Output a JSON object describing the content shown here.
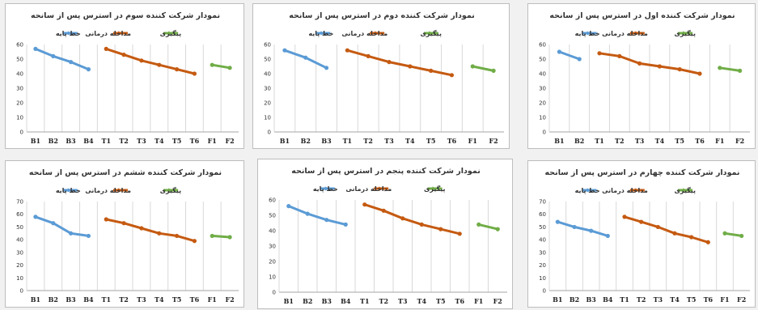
{
  "legend_labels": [
    "خط پایه",
    "مداخله درمانی",
    "پیگیری"
  ],
  "colors": {
    "baseline": "#5b9bd5",
    "treatment": "#c55a11",
    "followup": "#70ad47"
  },
  "chart_data": [
    {
      "type": "line",
      "title": "نمودار شرکت کننده سوم در استرس پس از سانحه",
      "categories": [
        "B1",
        "B2",
        "B3",
        "B4",
        "T1",
        "T2",
        "T3",
        "T4",
        "T5",
        "T6",
        "F1",
        "F2"
      ],
      "ylim": [
        0,
        60
      ],
      "yticks": [
        0,
        10,
        20,
        30,
        40,
        50,
        60
      ],
      "grid": "vertical",
      "legend_position": "top",
      "series": [
        {
          "name": "خط پایه",
          "x": [
            "B1",
            "B2",
            "B3",
            "B4"
          ],
          "values": [
            57,
            52,
            48,
            43
          ]
        },
        {
          "name": "مداخله درمانی",
          "x": [
            "T1",
            "T2",
            "T3",
            "T4",
            "T5",
            "T6"
          ],
          "values": [
            57,
            53,
            49,
            46,
            43,
            40
          ]
        },
        {
          "name": "پیگیری",
          "x": [
            "F1",
            "F2"
          ],
          "values": [
            46,
            44
          ]
        }
      ]
    },
    {
      "type": "line",
      "title": "نمودار شرکت کننده دوم در استرس پس از سانحه",
      "categories": [
        "B1",
        "B2",
        "B3",
        "T1",
        "T2",
        "T3",
        "T4",
        "T5",
        "T6",
        "F1",
        "F2"
      ],
      "ylim": [
        0,
        60
      ],
      "yticks": [
        0,
        10,
        20,
        30,
        40,
        50,
        60
      ],
      "grid": "vertical",
      "legend_position": "top",
      "series": [
        {
          "name": "خط پایه",
          "x": [
            "B1",
            "B2",
            "B3"
          ],
          "values": [
            56,
            51,
            44
          ]
        },
        {
          "name": "مداخله درمانی",
          "x": [
            "T1",
            "T2",
            "T3",
            "T4",
            "T5",
            "T6"
          ],
          "values": [
            56,
            52,
            48,
            45,
            42,
            39
          ]
        },
        {
          "name": "پیگیری",
          "x": [
            "F1",
            "F2"
          ],
          "values": [
            45,
            42
          ]
        }
      ]
    },
    {
      "type": "line",
      "title": "نمودار شرکت کننده اول در استرس پس از سانحه",
      "categories": [
        "B1",
        "B2",
        "T1",
        "T2",
        "T3",
        "T4",
        "T5",
        "T6",
        "F1",
        "F2"
      ],
      "ylim": [
        0,
        60
      ],
      "yticks": [
        0,
        10,
        20,
        30,
        40,
        50,
        60
      ],
      "grid": "vertical",
      "legend_position": "top",
      "series": [
        {
          "name": "خط پایه",
          "x": [
            "B1",
            "B2"
          ],
          "values": [
            55,
            50
          ]
        },
        {
          "name": "مداخله درمانی",
          "x": [
            "T1",
            "T2",
            "T3",
            "T4",
            "T5",
            "T6"
          ],
          "values": [
            54,
            52,
            47,
            45,
            43,
            40
          ]
        },
        {
          "name": "پیگیری",
          "x": [
            "F1",
            "F2"
          ],
          "values": [
            44,
            42
          ]
        }
      ]
    },
    {
      "type": "line",
      "title": "نمودار شرکت کننده ششم در استرس پس از سانحه",
      "categories": [
        "B1",
        "B2",
        "B3",
        "B4",
        "T1",
        "T2",
        "T3",
        "T4",
        "T5",
        "T6",
        "F1",
        "F2"
      ],
      "ylim": [
        0,
        70
      ],
      "yticks": [
        0,
        10,
        20,
        30,
        40,
        50,
        60,
        70
      ],
      "grid": "vertical",
      "legend_position": "top",
      "series": [
        {
          "name": "خط پایه",
          "x": [
            "B1",
            "B2",
            "B3",
            "B4"
          ],
          "values": [
            58,
            53,
            45,
            43
          ]
        },
        {
          "name": "مداخله درمانی",
          "x": [
            "T1",
            "T2",
            "T3",
            "T4",
            "T5",
            "T6"
          ],
          "values": [
            56,
            53,
            49,
            45,
            43,
            39
          ]
        },
        {
          "name": "پیگیری",
          "x": [
            "F1",
            "F2"
          ],
          "values": [
            43,
            42
          ]
        }
      ]
    },
    {
      "type": "line",
      "title": "نمودار شرکت کننده پنجم در استرس پس از سانحه",
      "categories": [
        "B1",
        "B2",
        "B3",
        "B4",
        "T1",
        "T2",
        "T3",
        "T4",
        "T5",
        "T6",
        "F1",
        "F2"
      ],
      "ylim": [
        0,
        60
      ],
      "yticks": [
        0,
        10,
        20,
        30,
        40,
        50,
        60
      ],
      "grid": "vertical",
      "legend_position": "top",
      "series": [
        {
          "name": "خط پایه",
          "x": [
            "B1",
            "B2",
            "B3",
            "B4"
          ],
          "values": [
            56,
            51,
            47,
            44
          ]
        },
        {
          "name": "مداخله درمانی",
          "x": [
            "T1",
            "T2",
            "T3",
            "T4",
            "T5",
            "T6"
          ],
          "values": [
            57,
            53,
            48,
            44,
            41,
            38
          ]
        },
        {
          "name": "پیگیری",
          "x": [
            "F1",
            "F2"
          ],
          "values": [
            44,
            41
          ]
        }
      ]
    },
    {
      "type": "line",
      "title": "نمودار شرکت کننده چهارم در استرس پس از سانحه",
      "categories": [
        "B1",
        "B2",
        "B3",
        "B4",
        "T1",
        "T2",
        "T3",
        "T4",
        "T5",
        "T6",
        "F1",
        "F2"
      ],
      "ylim": [
        0,
        70
      ],
      "yticks": [
        0,
        10,
        20,
        30,
        40,
        50,
        60,
        70
      ],
      "grid": "vertical",
      "legend_position": "top",
      "series": [
        {
          "name": "خط پایه",
          "x": [
            "B1",
            "B2",
            "B3",
            "B4"
          ],
          "values": [
            54,
            50,
            47,
            43
          ]
        },
        {
          "name": "مداخله درمانی",
          "x": [
            "T1",
            "T2",
            "T3",
            "T4",
            "T5",
            "T6"
          ],
          "values": [
            58,
            54,
            50,
            45,
            42,
            38
          ]
        },
        {
          "name": "پیگیری",
          "x": [
            "F1",
            "F2"
          ],
          "values": [
            45,
            43
          ]
        }
      ]
    }
  ]
}
